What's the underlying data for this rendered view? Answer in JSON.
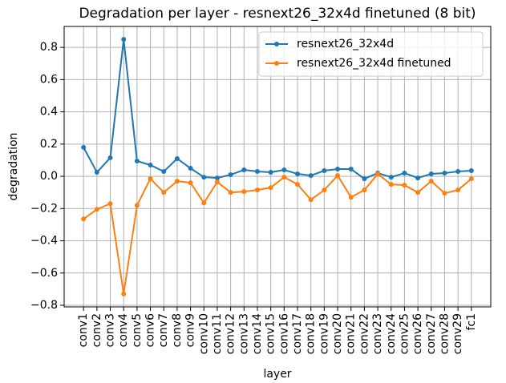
{
  "chart_data": {
    "type": "line",
    "title": "Degradation per layer - resnext26_32x4d finetuned (8 bit)",
    "xlabel": "layer",
    "ylabel": "degradation",
    "categories": [
      "conv1",
      "conv2",
      "conv3",
      "conv4",
      "conv5",
      "conv6",
      "conv7",
      "conv8",
      "conv9",
      "conv10",
      "conv11",
      "conv12",
      "conv13",
      "conv14",
      "conv15",
      "conv16",
      "conv17",
      "conv18",
      "conv19",
      "conv20",
      "conv21",
      "conv22",
      "conv23",
      "conv24",
      "conv25",
      "conv26",
      "conv27",
      "conv28",
      "conv29",
      "fc1"
    ],
    "series": [
      {
        "name": "resnext26_32x4d",
        "color": "#1f77b4",
        "values": [
          0.18,
          0.025,
          0.115,
          0.85,
          0.095,
          0.07,
          0.03,
          0.11,
          0.05,
          -0.005,
          -0.01,
          0.01,
          0.04,
          0.03,
          0.025,
          0.04,
          0.015,
          0.005,
          0.035,
          0.045,
          0.045,
          -0.015,
          0.02,
          -0.005,
          0.02,
          -0.01,
          0.015,
          0.02,
          0.03,
          0.035
        ]
      },
      {
        "name": "resnext26_32x4d finetuned",
        "color": "#ff7f0e",
        "values": [
          -0.265,
          -0.205,
          -0.17,
          -0.73,
          -0.18,
          -0.015,
          -0.1,
          -0.03,
          -0.04,
          -0.165,
          -0.035,
          -0.1,
          -0.095,
          -0.085,
          -0.07,
          -0.005,
          -0.05,
          -0.145,
          -0.085,
          0.005,
          -0.13,
          -0.085,
          0.015,
          -0.05,
          -0.055,
          -0.1,
          -0.03,
          -0.105,
          -0.085,
          -0.015
        ]
      }
    ],
    "ylim": [
      -0.81,
      0.93
    ],
    "yticks": [
      {
        "value": -0.8,
        "label": "−0.8"
      },
      {
        "value": -0.6,
        "label": "−0.6"
      },
      {
        "value": -0.4,
        "label": "−0.4"
      },
      {
        "value": -0.2,
        "label": "−0.2"
      },
      {
        "value": 0,
        "label": "0.0"
      },
      {
        "value": 0.2,
        "label": "0.2"
      },
      {
        "value": 0.4,
        "label": "0.4"
      },
      {
        "value": 0.6,
        "label": "0.6"
      },
      {
        "value": 0.8,
        "label": "0.8"
      }
    ],
    "grid": true,
    "legend": "upper right"
  }
}
